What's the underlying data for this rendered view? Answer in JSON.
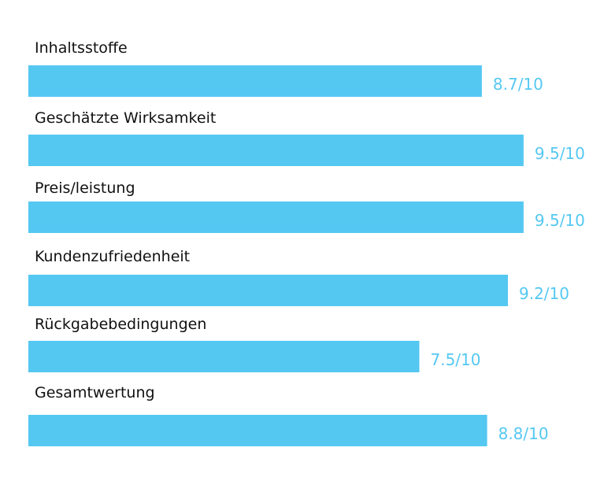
{
  "chart_data": {
    "type": "bar",
    "orientation": "horizontal",
    "categories": [
      "Inhaltsstoffe",
      "Geschätzte Wirksamkeit",
      "Preis/leistung",
      "Kundenzufriedenheit",
      "Rückgabebedingungen",
      "Gesamtwertung"
    ],
    "values": [
      8.7,
      9.5,
      9.5,
      9.2,
      7.5,
      8.8
    ],
    "value_labels": [
      "8.7/10",
      "9.5/10",
      "9.5/10",
      "9.2/10",
      "7.5/10",
      "8.8/10"
    ],
    "xlim": [
      0,
      10
    ],
    "title": "",
    "xlabel": "",
    "ylabel": "",
    "grid": false,
    "legend": "none",
    "colors": {
      "bar": "#55c8f2",
      "value_label": "#55c8f2",
      "category_label": "#111111",
      "background": "#ffffff"
    }
  }
}
